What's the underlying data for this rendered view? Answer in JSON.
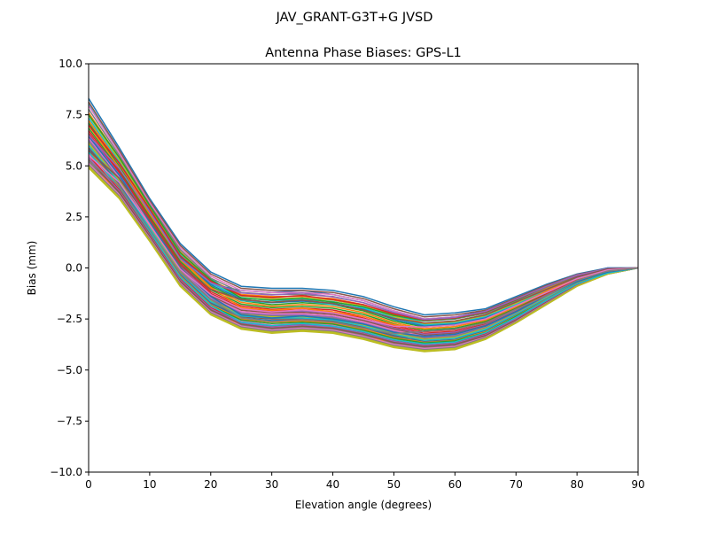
{
  "chart_data": {
    "type": "line",
    "suptitle": "JAV_GRANT-G3T+G JVSD",
    "title": "Antenna Phase Biases: GPS-L1",
    "xlabel": "Elevation angle (degrees)",
    "ylabel": "Bias (mm)",
    "xlim": [
      0,
      90
    ],
    "ylim": [
      -10,
      10
    ],
    "xticks": [
      "0",
      "10",
      "20",
      "30",
      "40",
      "50",
      "60",
      "70",
      "80",
      "90"
    ],
    "yticks": [
      "10.0",
      "7.5",
      "5.0",
      "2.5",
      "0.0",
      "−2.5",
      "−5.0",
      "−7.5",
      "−10.0"
    ],
    "grid": false,
    "colors": [
      "#1f77b4",
      "#ff7f0e",
      "#2ca02c",
      "#d62728",
      "#9467bd",
      "#8c564b",
      "#e377c2",
      "#7f7f7f",
      "#bcbd22",
      "#17becf"
    ],
    "x": [
      0,
      5,
      10,
      15,
      20,
      25,
      30,
      35,
      40,
      45,
      50,
      55,
      60,
      65,
      70,
      75,
      80,
      85,
      90
    ],
    "series": [
      {
        "values": [
          8.3,
          5.9,
          3.4,
          1.2,
          -0.2,
          -0.9,
          -1.0,
          -1.0,
          -1.1,
          -1.4,
          -1.9,
          -2.3,
          -2.2,
          -2.0,
          -1.4,
          -0.8,
          -0.3,
          0.0,
          0
        ]
      },
      {
        "values": [
          7.6,
          5.4,
          3.0,
          0.8,
          -0.6,
          -1.3,
          -1.4,
          -1.4,
          -1.5,
          -1.8,
          -2.3,
          -2.7,
          -2.6,
          -2.3,
          -1.7,
          -1.0,
          -0.4,
          -0.1,
          0
        ]
      },
      {
        "values": [
          7.1,
          5.0,
          2.7,
          0.5,
          -0.9,
          -1.6,
          -1.8,
          -1.7,
          -1.8,
          -2.1,
          -2.6,
          -2.9,
          -2.8,
          -2.5,
          -1.9,
          -1.2,
          -0.5,
          -0.1,
          0
        ]
      },
      {
        "values": [
          6.6,
          4.65,
          2.35,
          0.15,
          -1.25,
          -1.95,
          -2.1,
          -2.05,
          -2.15,
          -2.45,
          -2.9,
          -3.2,
          -3.1,
          -2.75,
          -2.05,
          -1.3,
          -0.6,
          -0.15,
          0
        ]
      },
      {
        "values": [
          6.3,
          4.4,
          2.1,
          -0.1,
          -1.5,
          -2.2,
          -2.3,
          -2.3,
          -2.4,
          -2.7,
          -3.1,
          -3.4,
          -3.3,
          -2.9,
          -2.2,
          -1.4,
          -0.7,
          -0.2,
          0
        ]
      },
      {
        "values": [
          5.9,
          4.15,
          1.9,
          -0.3,
          -1.7,
          -2.4,
          -2.5,
          -2.5,
          -2.6,
          -2.9,
          -3.3,
          -3.6,
          -3.5,
          -3.05,
          -2.3,
          -1.5,
          -0.7,
          -0.2,
          0
        ]
      },
      {
        "values": [
          5.6,
          3.9,
          1.7,
          -0.5,
          -1.9,
          -2.6,
          -2.8,
          -2.7,
          -2.8,
          -3.1,
          -3.5,
          -3.7,
          -3.6,
          -3.2,
          -2.4,
          -1.6,
          -0.8,
          -0.25,
          0
        ]
      },
      {
        "values": [
          5.2,
          3.65,
          1.5,
          -0.7,
          -2.1,
          -2.8,
          -3.0,
          -2.9,
          -3.0,
          -3.3,
          -3.7,
          -3.9,
          -3.8,
          -3.35,
          -2.6,
          -1.7,
          -0.85,
          -0.3,
          0
        ]
      },
      {
        "values": [
          4.9,
          3.4,
          1.3,
          -0.9,
          -2.3,
          -3.0,
          -3.2,
          -3.1,
          -3.2,
          -3.5,
          -3.9,
          -4.1,
          -4.0,
          -3.5,
          -2.7,
          -1.8,
          -0.9,
          -0.3,
          0
        ]
      },
      {
        "values": [
          8.0,
          5.7,
          3.2,
          0.9,
          -0.5,
          -1.6,
          -1.7,
          -1.6,
          -1.8,
          -2.0,
          -2.4,
          -2.6,
          -2.5,
          -2.2,
          -1.6,
          -0.9,
          -0.4,
          -0.1,
          0
        ]
      },
      {
        "values": [
          6.0,
          4.6,
          2.6,
          0.3,
          -0.8,
          -1.1,
          -1.2,
          -1.1,
          -1.3,
          -1.6,
          -2.1,
          -2.5,
          -2.4,
          -2.1,
          -1.5,
          -0.9,
          -0.35,
          0.0,
          0
        ]
      },
      {
        "values": [
          5.0,
          3.8,
          1.6,
          -0.4,
          -1.8,
          -2.9,
          -3.1,
          -3.0,
          -3.1,
          -3.4,
          -3.6,
          -3.3,
          -3.2,
          -2.9,
          -2.2,
          -1.5,
          -0.7,
          -0.2,
          0
        ]
      }
    ]
  }
}
